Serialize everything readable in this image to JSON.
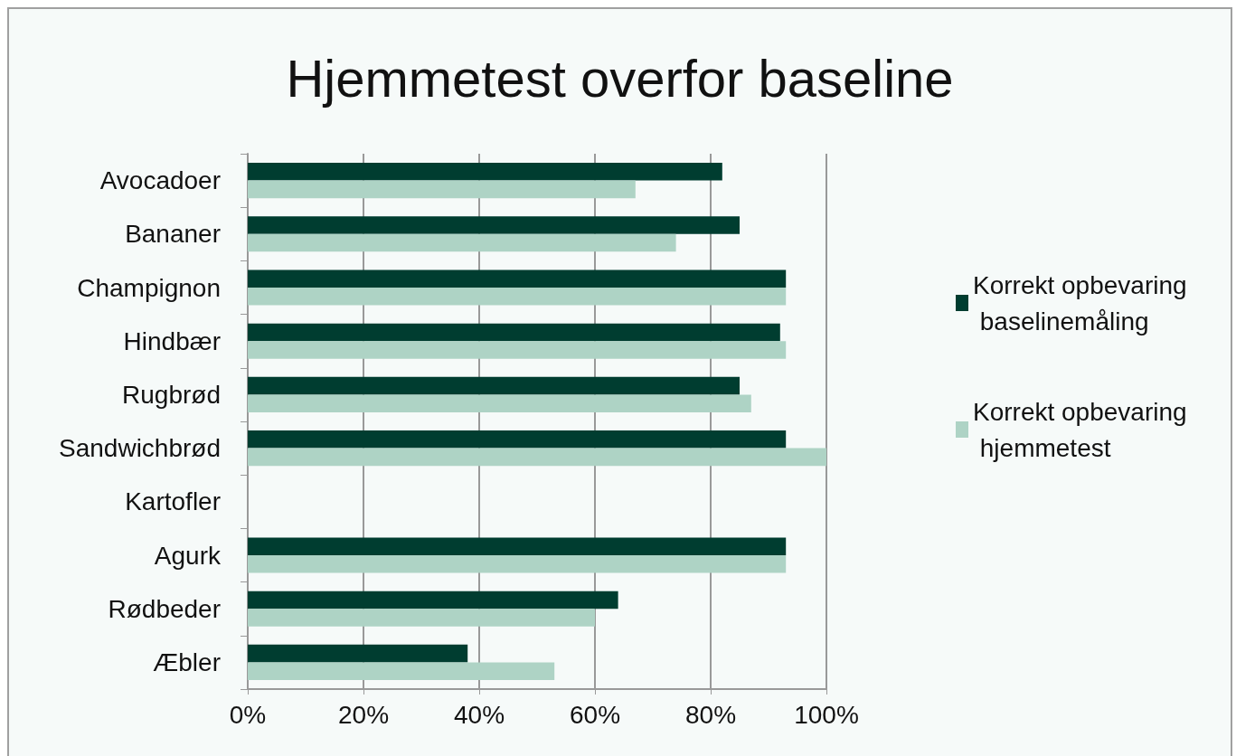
{
  "chart_data": {
    "type": "bar",
    "orientation": "horizontal",
    "title": "Hjemmetest overfor baseline",
    "categories": [
      "Avocadoer",
      "Bananer",
      "Champignon",
      "Hindbær",
      "Rugbrød",
      "Sandwichbrød",
      "Kartofler",
      "Agurk",
      "Rødbeder",
      "Æbler"
    ],
    "series": [
      {
        "name": "Korrekt opbevaring baselinemåling",
        "color": "#003d30",
        "values": [
          82,
          85,
          93,
          92,
          85,
          93,
          null,
          93,
          64,
          38
        ]
      },
      {
        "name": "Korrekt opbevaring hjemmetest",
        "color": "#aed3c5",
        "values": [
          67,
          74,
          93,
          93,
          87,
          100,
          null,
          93,
          60,
          53
        ]
      }
    ],
    "xlim": [
      0,
      100
    ],
    "xticks": [
      {
        "value": 0,
        "label": "0%"
      },
      {
        "value": 20,
        "label": "20%"
      },
      {
        "value": 40,
        "label": "40%"
      },
      {
        "value": 60,
        "label": "60%"
      },
      {
        "value": 80,
        "label": "80%"
      },
      {
        "value": 100,
        "label": "100%"
      }
    ],
    "grid": "x",
    "legend": "right"
  }
}
